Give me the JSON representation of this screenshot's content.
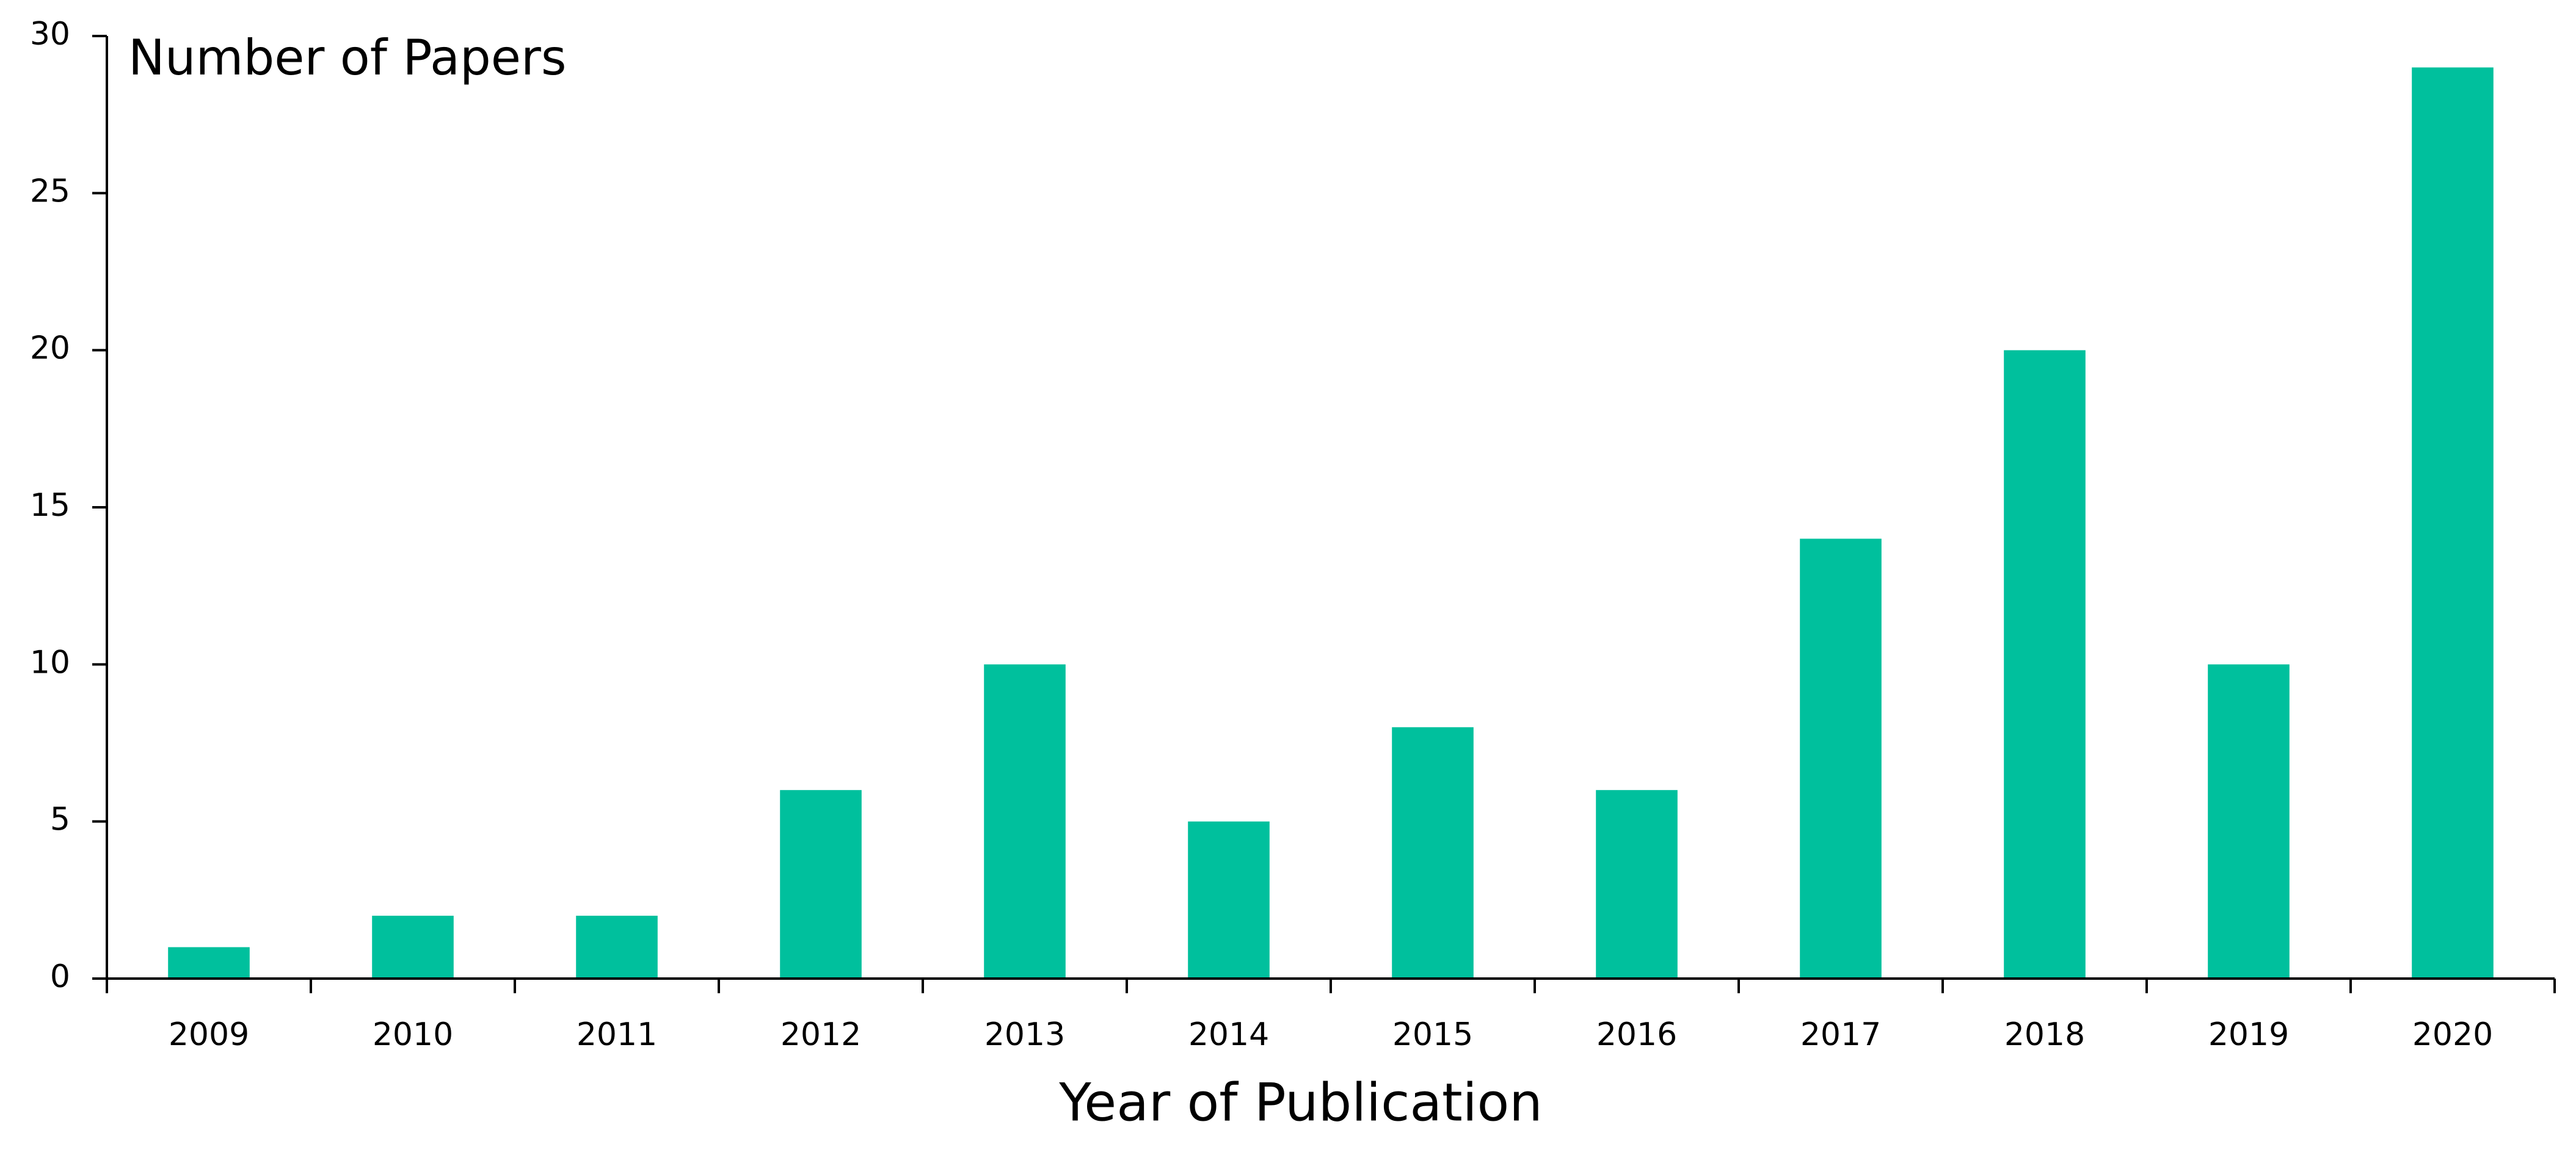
{
  "chart_data": {
    "type": "bar",
    "y_label": "Number of Papers",
    "x_label": "Year of Publication",
    "categories": [
      "2009",
      "2010",
      "2011",
      "2012",
      "2013",
      "2014",
      "2015",
      "2016",
      "2017",
      "2018",
      "2019",
      "2020"
    ],
    "values": [
      1,
      2,
      2,
      6,
      10,
      5,
      8,
      6,
      14,
      20,
      10,
      29
    ],
    "color": "#00c09d",
    "ylim": [
      0,
      30
    ],
    "yticks": [
      0,
      5,
      10,
      15,
      20,
      25,
      30
    ],
    "grid": false
  }
}
